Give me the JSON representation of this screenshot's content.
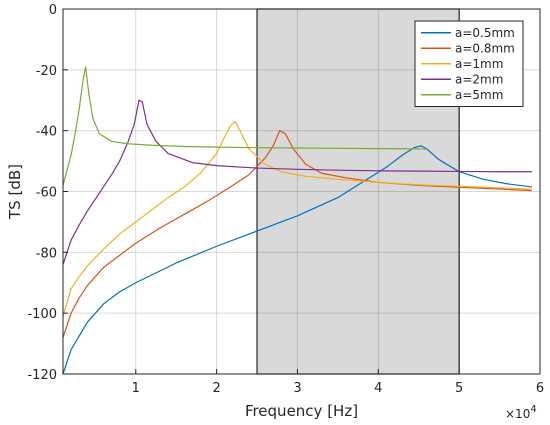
{
  "chart_data": {
    "type": "line",
    "xlabel": "Frequency [Hz]",
    "ylabel": "TS [dB]",
    "xlim": [
      1000,
      60000
    ],
    "ylim": [
      -120,
      0
    ],
    "x_scale_exponent_label": "×10",
    "x_scale_exponent": "4",
    "x_ticks": [
      10000,
      20000,
      30000,
      40000,
      50000,
      60000
    ],
    "x_tick_labels": [
      "1",
      "2",
      "3",
      "4",
      "5",
      "6"
    ],
    "y_ticks": [
      -120,
      -100,
      -80,
      -60,
      -40,
      -20,
      0
    ],
    "y_tick_labels": [
      "-120",
      "-100",
      "-80",
      "-60",
      "-40",
      "-20",
      "0"
    ],
    "grid": true,
    "legend_position": "top-right",
    "shaded_region": {
      "x_start": 25000,
      "x_end": 50000,
      "color": "#d9d9d9"
    },
    "series": [
      {
        "name": "a=0.5mm",
        "color": "#0072bd",
        "x": [
          1000,
          2000,
          4000,
          6000,
          8000,
          10000,
          15000,
          20000,
          25000,
          30000,
          35000,
          38000,
          41000,
          43000,
          44500,
          45300,
          46000,
          47500,
          50000,
          53000,
          56000,
          59000
        ],
        "y": [
          -120,
          -112,
          -103,
          -97,
          -93,
          -90,
          -83.5,
          -78,
          -73,
          -68,
          -62,
          -57,
          -52,
          -48,
          -45.5,
          -45,
          -46,
          -49.5,
          -53.5,
          -56,
          -57.5,
          -58.5
        ]
      },
      {
        "name": "a=0.8mm",
        "color": "#d95319",
        "x": [
          1000,
          2000,
          3000,
          4000,
          6000,
          8000,
          10000,
          13000,
          16000,
          19000,
          22000,
          24000,
          26000,
          27000,
          27800,
          28500,
          29500,
          31000,
          33000,
          36000,
          40000,
          45000,
          50000,
          55000,
          59000
        ],
        "y": [
          -108,
          -100,
          -95,
          -91,
          -85,
          -81,
          -77,
          -72,
          -67.5,
          -63,
          -58,
          -54.5,
          -49,
          -45,
          -40,
          -41,
          -46,
          -51,
          -54,
          -55.5,
          -57,
          -58,
          -58.6,
          -59.2,
          -59.7
        ]
      },
      {
        "name": "a=1mm",
        "color": "#edb120",
        "x": [
          1000,
          2000,
          3000,
          4000,
          6000,
          8000,
          10000,
          12000,
          14000,
          16000,
          18000,
          20000,
          21000,
          21800,
          22300,
          23000,
          24000,
          26000,
          28000,
          31000,
          35000,
          40000,
          45000,
          50000,
          55000,
          59000
        ],
        "y": [
          -101,
          -92,
          -88,
          -84.5,
          -79,
          -74,
          -70,
          -66,
          -62,
          -58.5,
          -54,
          -47.5,
          -42,
          -38,
          -37,
          -40.5,
          -46,
          -51,
          -53.5,
          -55,
          -56,
          -57,
          -57.8,
          -58.3,
          -58.8,
          -59.2
        ]
      },
      {
        "name": "a=2mm",
        "color": "#7e2f8e",
        "x": [
          1000,
          2000,
          3000,
          4000,
          5000,
          6000,
          7000,
          8000,
          9000,
          9800,
          10400,
          10800,
          11400,
          12500,
          14000,
          17000,
          20000,
          25000,
          30000,
          35000,
          40000,
          45000,
          50000,
          55000,
          59000
        ],
        "y": [
          -84,
          -76,
          -71,
          -66.5,
          -62.5,
          -58.5,
          -54.5,
          -50,
          -44,
          -38,
          -30,
          -30.5,
          -38,
          -43.5,
          -47.5,
          -50.5,
          -51.5,
          -52.3,
          -52.7,
          -53,
          -53.2,
          -53.3,
          -53.4,
          -53.5,
          -53.5
        ]
      },
      {
        "name": "a=5mm",
        "color": "#77ac30",
        "x": [
          1000,
          1500,
          2000,
          2500,
          3000,
          3500,
          3800,
          4200,
          4700,
          5500,
          7000,
          9000,
          12000,
          16000,
          20000,
          25000,
          30000,
          35000,
          40000,
          45000,
          46000
        ],
        "y": [
          -58,
          -53,
          -48,
          -41,
          -33,
          -23,
          -19,
          -28,
          -36,
          -41,
          -43.5,
          -44.3,
          -44.8,
          -45.2,
          -45.4,
          -45.6,
          -45.7,
          -45.8,
          -45.9,
          -46,
          -46
        ]
      }
    ]
  }
}
